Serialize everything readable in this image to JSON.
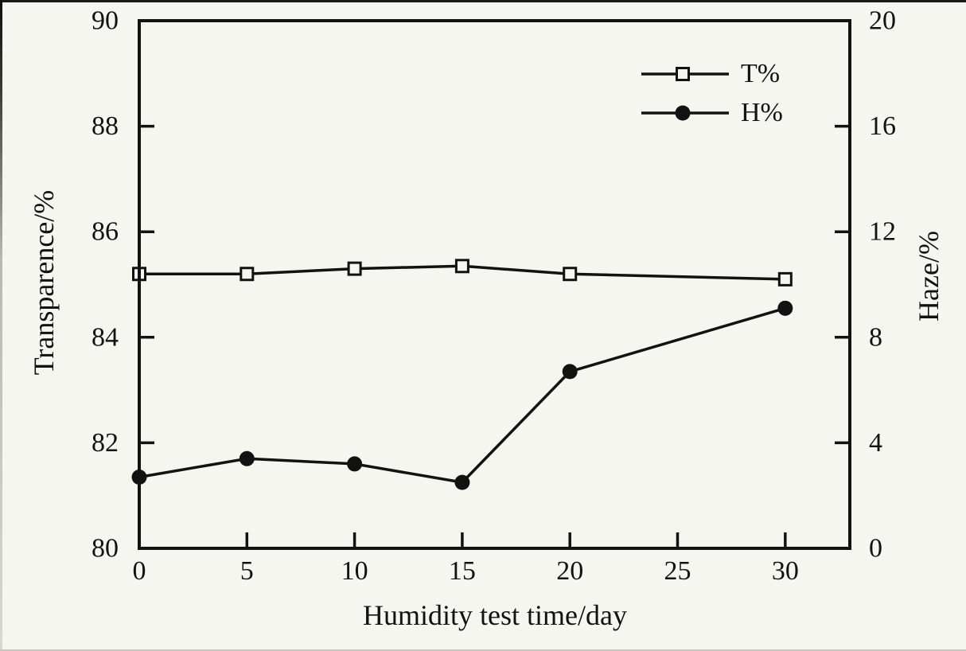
{
  "figure": {
    "background": "#f6f6f1",
    "ink": "#121212"
  },
  "chart_data": {
    "type": "line",
    "title": "",
    "xlabel": "Humidity test time/day",
    "ylabel_left": "Transparence/%",
    "ylabel_right": "Haze/%",
    "xlim": [
      0,
      33
    ],
    "x_ticks": [
      0,
      5,
      10,
      15,
      20,
      25,
      30
    ],
    "ylim_left": [
      80,
      90
    ],
    "yticks_left": [
      80,
      82,
      84,
      86,
      88,
      90
    ],
    "ylim_right": [
      0,
      20
    ],
    "yticks_right": [
      0,
      4,
      8,
      12,
      16,
      20
    ],
    "grid": false,
    "legend": {
      "position": "inside-top-right",
      "border": false
    },
    "x": [
      0,
      5,
      10,
      15,
      20,
      30
    ],
    "series": [
      {
        "name": "T%",
        "axis": "left",
        "marker": "open-square",
        "color": "#121212",
        "values": [
          85.2,
          85.2,
          85.3,
          85.35,
          85.2,
          85.1
        ]
      },
      {
        "name": "H%",
        "axis": "right",
        "marker": "filled-circle",
        "color": "#121212",
        "values": [
          2.7,
          3.4,
          3.2,
          2.5,
          6.7,
          9.1
        ]
      }
    ]
  }
}
